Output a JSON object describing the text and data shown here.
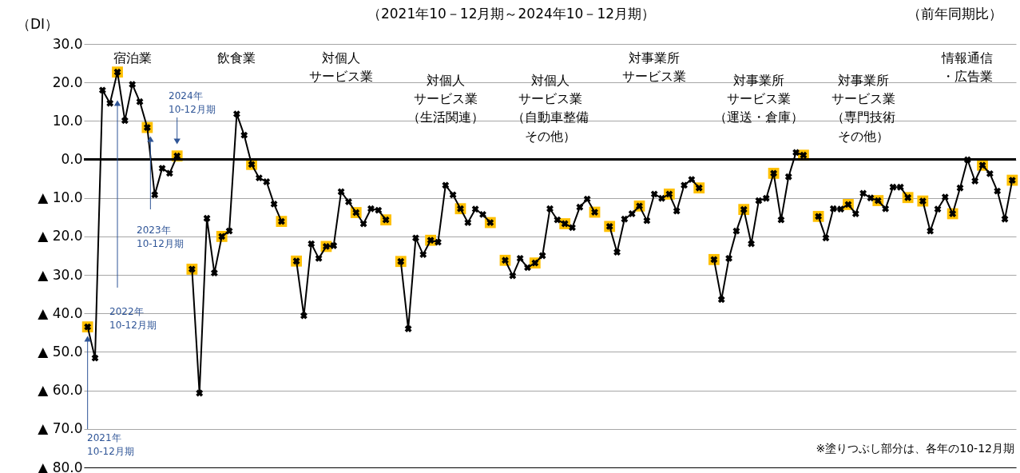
{
  "chart_data": {
    "type": "line",
    "title": "（2021年10－12月期～2024年10－12月期）",
    "subtitle": "（前年同期比）",
    "ylabel": "（DI）",
    "categories": [
      null,
      null,
      null,
      null,
      null,
      null,
      null,
      null,
      null,
      null,
      null,
      null,
      null,
      null,
      null,
      null,
      null,
      null,
      null,
      null,
      null,
      null,
      null,
      null,
      null,
      null,
      null,
      null,
      null,
      null,
      null,
      null,
      null,
      null,
      null,
      null,
      null,
      null,
      null,
      null,
      null,
      null,
      null,
      null,
      null,
      null,
      null,
      null,
      null,
      null,
      null,
      null,
      null,
      null,
      null,
      null,
      null,
      null,
      null,
      null,
      null,
      null,
      null,
      null,
      null,
      null,
      null,
      null,
      null,
      null,
      null,
      null,
      null,
      null,
      null,
      null,
      null,
      null,
      null,
      null,
      null,
      null,
      null,
      null,
      null,
      null,
      null,
      null,
      null,
      null,
      null,
      null,
      null,
      null,
      null,
      null,
      null,
      null,
      null,
      null,
      null,
      null,
      null,
      null,
      null,
      null,
      null,
      null,
      null,
      null,
      null,
      null,
      null,
      null,
      null,
      null,
      null,
      null,
      null,
      null,
      null,
      null,
      null,
      null,
      null
    ],
    "series": [
      {
        "type": "scatter",
        "color": "#ffc000",
        "marker": "square",
        "values": [
          -43.5,
          null,
          null,
          null,
          22.7,
          null,
          null,
          null,
          8.3,
          null,
          null,
          null,
          0.9,
          null,
          -28.5,
          null,
          null,
          null,
          -20.0,
          null,
          null,
          null,
          -1.3,
          null,
          null,
          null,
          -16.1,
          null,
          -26.4,
          null,
          null,
          null,
          -22.6,
          null,
          null,
          null,
          -13.8,
          null,
          null,
          null,
          -15.7,
          null,
          -26.5,
          null,
          null,
          null,
          -21.0,
          null,
          null,
          null,
          -12.8,
          null,
          null,
          null,
          -16.4,
          null,
          -26.2,
          null,
          null,
          null,
          -26.9,
          null,
          null,
          null,
          -16.7,
          null,
          null,
          null,
          -13.7,
          null,
          -17.4,
          null,
          null,
          null,
          -12.1,
          null,
          null,
          null,
          -9.0,
          null,
          null,
          null,
          -7.4,
          null,
          -26.0,
          null,
          null,
          null,
          -13.0,
          null,
          null,
          null,
          -3.6,
          null,
          null,
          null,
          1.1,
          null,
          -14.8,
          null,
          null,
          null,
          -11.7,
          null,
          null,
          null,
          -10.7,
          null,
          null,
          null,
          -9.9,
          null,
          -10.8,
          null,
          null,
          null,
          -14.1,
          null,
          null,
          null,
          -1.5,
          null,
          null,
          null,
          -5.4
        ]
      },
      {
        "color": "#000000",
        "marker": "cross",
        "line_style": "solid",
        "values": [
          -43.5,
          -51.6,
          18.0,
          14.6,
          22.7,
          10.1,
          19.5,
          15.0,
          8.3,
          -9.2,
          -2.3,
          -3.6,
          0.9,
          null,
          -28.5,
          -60.7,
          -15.3,
          -29.5,
          -20.0,
          -18.6,
          11.8,
          6.3,
          -1.3,
          -4.8,
          -5.8,
          -11.6,
          -16.1,
          null,
          -26.4,
          -40.6,
          -21.9,
          -25.7,
          -22.6,
          -22.4,
          -8.4,
          -11.0,
          -13.8,
          -16.7,
          -12.8,
          -13.2,
          -15.7,
          null,
          -26.5,
          -44.0,
          -20.4,
          -24.7,
          -21.0,
          -21.5,
          -6.7,
          -9.2,
          -12.8,
          -16.4,
          -12.9,
          -14.3,
          -16.4,
          null,
          -26.2,
          -30.2,
          -25.7,
          -28.1,
          -26.9,
          -25.0,
          -12.8,
          -15.7,
          -16.7,
          -17.7,
          -12.4,
          -10.3,
          -13.7,
          null,
          -17.4,
          -24.1,
          -15.5,
          -14.1,
          -12.1,
          -15.9,
          -9.0,
          -10.1,
          -9.0,
          -13.4,
          -6.7,
          -5.2,
          -7.4,
          null,
          -26.0,
          -36.4,
          -25.7,
          -18.6,
          -13.0,
          -21.9,
          -10.7,
          -10.1,
          -3.6,
          -15.7,
          -4.5,
          1.8,
          1.1,
          null,
          -14.8,
          -20.4,
          -12.8,
          -12.9,
          -11.7,
          -14.1,
          -8.8,
          -10.0,
          -10.7,
          -12.8,
          -7.2,
          -7.2,
          -9.9,
          null,
          -10.8,
          -18.6,
          -12.9,
          -9.8,
          -14.1,
          -7.4,
          -0.1,
          -5.6,
          -1.5,
          -3.7,
          -8.2,
          -15.5,
          -5.4
        ]
      }
    ],
    "ylim": [
      -80,
      30
    ],
    "yticks": [
      {
        "value": 30,
        "label": "30.0"
      },
      {
        "value": 20,
        "label": "20.0"
      },
      {
        "value": 10,
        "label": "10.0"
      },
      {
        "value": 0,
        "label": "0.0"
      },
      {
        "value": -10,
        "label": "▲ 10.0"
      },
      {
        "value": -20,
        "label": "▲ 20.0"
      },
      {
        "value": -30,
        "label": "▲ 30.0"
      },
      {
        "value": -40,
        "label": "▲ 40.0"
      },
      {
        "value": -50,
        "label": "▲ 50.0"
      },
      {
        "value": -60,
        "label": "▲ 60.0"
      },
      {
        "value": -70,
        "label": "▲ 70.0"
      },
      {
        "value": -80,
        "label": "▲ 80.0"
      }
    ],
    "grid": "y",
    "ref_lines": [
      {
        "axis": "y",
        "value": 0,
        "color": "#000000",
        "line_style": "solid"
      }
    ],
    "annotations": [
      "宿泊業",
      "飲食業",
      "対個人サービス業",
      "対個人サービス業（生活関連）",
      "対個人サービス業（自動車整備その他）",
      "対事業所サービス業",
      "対事業所サービス業（運送・倉庫）",
      "対事業所サービス業（専門技術その他）",
      "情報通信・広告業",
      "2021年10-12月期",
      "2022年10-12月期",
      "2023年10-12月期",
      "2024年10-12月期",
      "※塗りつぶし部分は、各年の10-12月期"
    ]
  }
}
